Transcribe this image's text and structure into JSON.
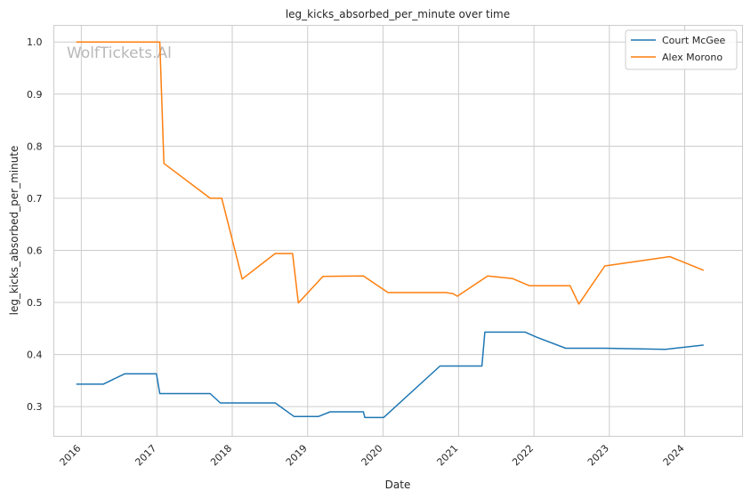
{
  "chart_data": {
    "type": "line",
    "title": "leg_kicks_absorbed_per_minute over time",
    "xlabel": "Date",
    "ylabel": "leg_kicks_absorbed_per_minute",
    "watermark": "WolfTickets.Al",
    "x_tick_labels": [
      "2016",
      "2017",
      "2018",
      "2019",
      "2020",
      "2021",
      "2022",
      "2023",
      "2024"
    ],
    "y_tick_labels": [
      "0.3",
      "0.4",
      "0.5",
      "0.6",
      "0.7",
      "0.8",
      "0.9",
      "1.0"
    ],
    "xlim": [
      "2015-08-21",
      "2024-10-07"
    ],
    "ylim": [
      0.243,
      1.032
    ],
    "grid": true,
    "legend_position": "top-right",
    "series": [
      {
        "name": "Court McGee",
        "color": "#1f77b4",
        "points": [
          [
            "2015-12-10",
            0.343
          ],
          [
            "2016-04-16",
            0.343
          ],
          [
            "2016-07-30",
            0.363
          ],
          [
            "2016-12-30",
            0.363
          ],
          [
            "2017-01-15",
            0.325
          ],
          [
            "2017-09-16",
            0.325
          ],
          [
            "2017-11-04",
            0.307
          ],
          [
            "2018-07-28",
            0.307
          ],
          [
            "2018-10-27",
            0.281
          ],
          [
            "2019-02-23",
            0.281
          ],
          [
            "2019-04-20",
            0.29
          ],
          [
            "2019-09-28",
            0.29
          ],
          [
            "2019-10-05",
            0.279
          ],
          [
            "2020-01-04",
            0.279
          ],
          [
            "2020-10-03",
            0.378
          ],
          [
            "2021-04-24",
            0.378
          ],
          [
            "2021-05-08",
            0.443
          ],
          [
            "2021-11-20",
            0.443
          ],
          [
            "2022-01-15",
            0.433
          ],
          [
            "2022-06-04",
            0.412
          ],
          [
            "2022-12-10",
            0.412
          ],
          [
            "2023-09-30",
            0.41
          ],
          [
            "2024-03-30",
            0.418
          ]
        ]
      },
      {
        "name": "Alex Morono",
        "color": "#ff7f0e",
        "points": [
          [
            "2015-12-10",
            1.0
          ],
          [
            "2017-01-15",
            1.0
          ],
          [
            "2017-02-04",
            0.767
          ],
          [
            "2017-09-16",
            0.7
          ],
          [
            "2017-11-11",
            0.7
          ],
          [
            "2018-02-18",
            0.545
          ],
          [
            "2018-07-28",
            0.594
          ],
          [
            "2018-10-20",
            0.594
          ],
          [
            "2018-11-17",
            0.499
          ],
          [
            "2019-03-16",
            0.55
          ],
          [
            "2019-09-28",
            0.551
          ],
          [
            "2020-01-25",
            0.519
          ],
          [
            "2020-10-31",
            0.519
          ],
          [
            "2020-12-05",
            0.517
          ],
          [
            "2020-12-26",
            0.512
          ],
          [
            "2021-05-22",
            0.551
          ],
          [
            "2021-09-18",
            0.546
          ],
          [
            "2021-12-11",
            0.532
          ],
          [
            "2022-06-25",
            0.532
          ],
          [
            "2022-08-06",
            0.497
          ],
          [
            "2022-12-10",
            0.57
          ],
          [
            "2023-10-21",
            0.588
          ],
          [
            "2024-03-30",
            0.562
          ]
        ]
      }
    ]
  }
}
